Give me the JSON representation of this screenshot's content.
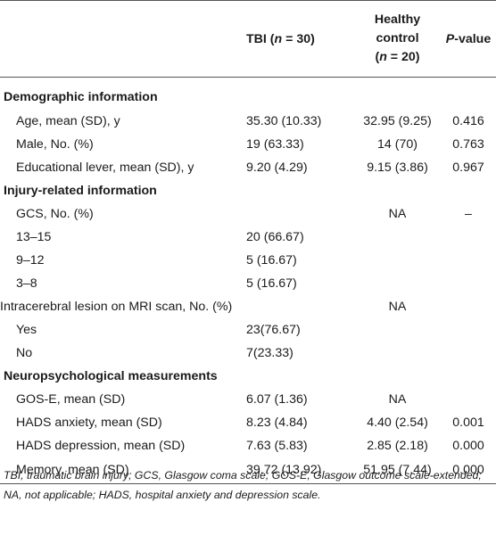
{
  "header": {
    "col1_html": "TBI (<i>n</i> = 30)",
    "col2_line1": "Healthy",
    "col2_line2": "control",
    "col2_line3_html": "(<i>n</i> = 20)",
    "col3_html": "<i>P</i>-value"
  },
  "sections": [
    {
      "title": "Demographic information",
      "rows": [
        {
          "label": "Age, mean (SD), y",
          "tbi": "35.30 (10.33)",
          "hc": "32.95 (9.25)",
          "p": "0.416",
          "indent": true
        },
        {
          "label": "Male, No. (%)",
          "tbi": "19 (63.33)",
          "hc": "14 (70)",
          "p": "0.763",
          "indent": true
        },
        {
          "label": "Educational lever, mean (SD), y",
          "tbi": "9.20 (4.29)",
          "hc": "9.15 (3.86)",
          "p": "0.967",
          "indent": true
        }
      ]
    },
    {
      "title": "Injury-related information",
      "rows": [
        {
          "label": "GCS, No. (%)",
          "tbi": "",
          "hc": "NA",
          "p": "–",
          "indent": true
        },
        {
          "label": "13–15",
          "tbi": "20 (66.67)",
          "hc": "",
          "p": "",
          "indent": true
        },
        {
          "label": "9–12",
          "tbi": "5 (16.67)",
          "hc": "",
          "p": "",
          "indent": true
        },
        {
          "label": "3–8",
          "tbi": "5 (16.67)",
          "hc": "",
          "p": "",
          "indent": true
        },
        {
          "label": "Intracerebral lesion on MRI scan, No. (%)",
          "tbi": "",
          "hc": "NA",
          "p": "",
          "indent": false
        },
        {
          "label": "Yes",
          "tbi": "23(76.67)",
          "hc": "",
          "p": "",
          "indent": true
        },
        {
          "label": "No",
          "tbi": "7(23.33)",
          "hc": "",
          "p": "",
          "indent": true
        }
      ]
    },
    {
      "title": "Neuropsychological measurements",
      "rows": [
        {
          "label": "GOS-E, mean (SD)",
          "tbi": "6.07 (1.36)",
          "hc": "NA",
          "p": "",
          "indent": true
        },
        {
          "label": "HADS anxiety, mean (SD)",
          "tbi": "8.23 (4.84)",
          "hc": "4.40 (2.54)",
          "p": "0.001",
          "indent": true
        },
        {
          "label": "HADS depression, mean (SD)",
          "tbi": "7.63 (5.83)",
          "hc": "2.85 (2.18)",
          "p": "0.000",
          "indent": true
        },
        {
          "label": "Memory, mean (SD)",
          "tbi": "39.72 (13.92)",
          "hc": "51.95 (7.44)",
          "p": "0.000",
          "indent": true
        }
      ]
    }
  ],
  "footnote": "TBI, traumatic brain injury; GCS, Glasgow coma scale; GOS-E, Glasgow outcome scale-extended; NA, not applicable; HADS, hospital anxiety and depression scale."
}
